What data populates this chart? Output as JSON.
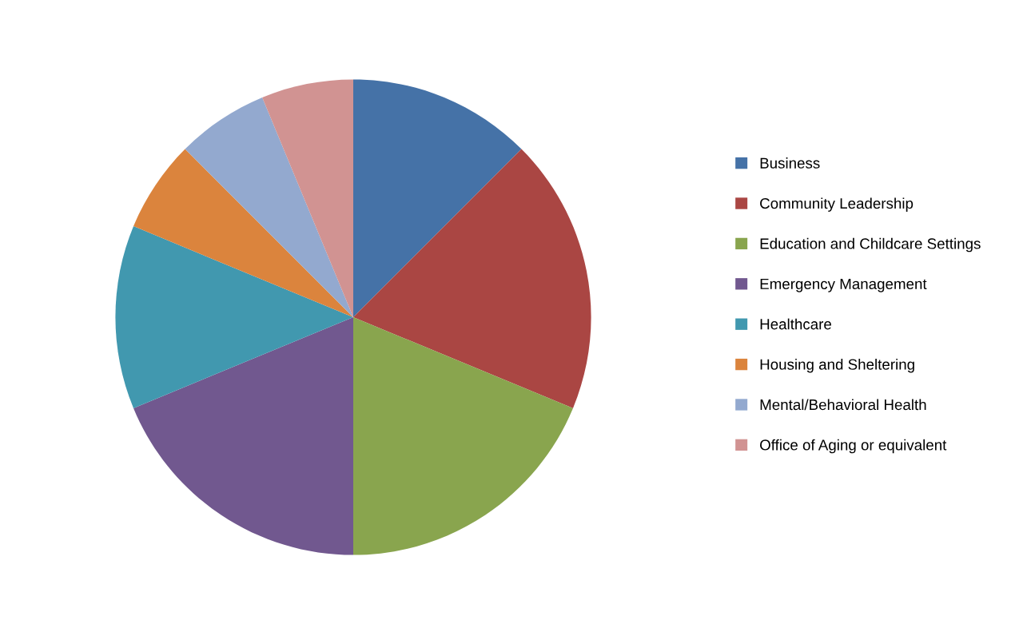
{
  "chart_data": {
    "type": "pie",
    "categories": [
      "Business",
      "Community Leadership",
      "Education and Childcare Settings",
      "Emergency Management",
      "Healthcare",
      "Housing and Sheltering",
      "Mental/Behavioral Health",
      "Office of Aging or equivalent"
    ],
    "values": [
      12.5,
      18.75,
      18.75,
      18.75,
      12.5,
      6.25,
      6.25,
      6.25
    ],
    "colors": [
      "#4572a7",
      "#aa4643",
      "#89a54e",
      "#71588f",
      "#4198af",
      "#db843d",
      "#93a9cf",
      "#d19392"
    ],
    "legend": "right"
  }
}
